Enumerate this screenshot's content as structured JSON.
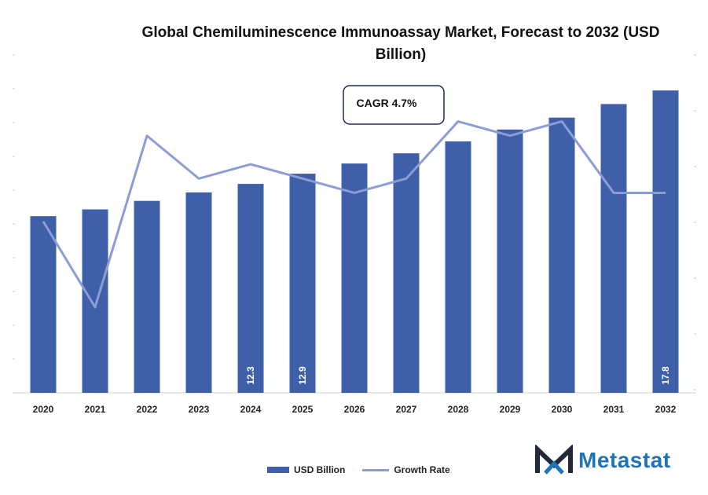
{
  "chart_data": {
    "type": "bar",
    "title": "Global Chemiluminescence Immunoassay Market, Forecast to 2032 (USD Billion)",
    "categories": [
      "2020",
      "2021",
      "2022",
      "2023",
      "2024",
      "2025",
      "2026",
      "2027",
      "2028",
      "2029",
      "2030",
      "2031",
      "2032"
    ],
    "series": [
      {
        "name": "USD Billion",
        "type": "bar",
        "color": "#3F5FA9",
        "values": [
          10.4,
          10.8,
          11.3,
          11.8,
          12.3,
          12.9,
          13.5,
          14.1,
          14.8,
          15.5,
          16.2,
          17.0,
          17.8
        ],
        "data_labels": [
          "",
          "",
          "",
          "",
          "12.3",
          "12.9",
          "",
          "",
          "",
          "",
          "",
          "",
          "17.8"
        ]
      },
      {
        "name": "Growth Rate",
        "type": "line",
        "color": "#8B9CD6",
        "values": [
          4.0,
          3.4,
          4.6,
          4.3,
          4.4,
          4.3,
          4.2,
          4.3,
          4.7,
          4.6,
          4.7,
          4.2,
          4.2
        ]
      }
    ],
    "ylim": [
      0,
      18.5
    ],
    "y2lim": [
      2.8,
      5.0
    ],
    "grid": false,
    "legend_position": "bottom",
    "annotation": "CAGR 4.7%"
  },
  "branding": {
    "logo_text": "Metastat"
  }
}
